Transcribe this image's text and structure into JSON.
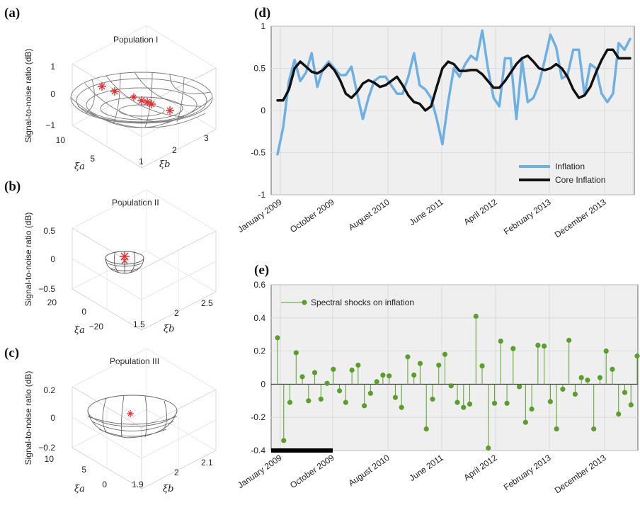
{
  "panels": {
    "a": {
      "letter": "(a)",
      "title": "Population I"
    },
    "b": {
      "letter": "(b)",
      "title": "Population II"
    },
    "c": {
      "letter": "(c)",
      "title": "Population III"
    },
    "d": {
      "letter": "(d)"
    },
    "e": {
      "letter": "(e)"
    }
  },
  "chart_data": [
    {
      "id": "a",
      "type": "surface3d",
      "title": "Population I",
      "zlabel": "Signal-to-noise ratio (dB)",
      "xlabel": "ξa",
      "ylabel": "ξb",
      "zticks": [
        "1",
        "0",
        "−1"
      ],
      "xticks": [
        "10",
        "5"
      ],
      "yticks": [
        "1",
        "2",
        "3"
      ]
    },
    {
      "id": "b",
      "type": "surface3d",
      "title": "Population II",
      "zlabel": "Signal-to-noise ratio (dB)",
      "xlabel": "ξa",
      "ylabel": "ξb",
      "zticks": [
        "0.5",
        "0",
        "−0.5"
      ],
      "xticks": [
        "20",
        "0",
        "−20"
      ],
      "yticks": [
        "1.5",
        "2",
        "2.5"
      ]
    },
    {
      "id": "c",
      "type": "surface3d",
      "title": "Population III",
      "zlabel": "Signal-to-noise ratio (dB)",
      "xlabel": "ξa",
      "ylabel": "ξb",
      "zticks": [
        "0.2",
        "0",
        "−0.2"
      ],
      "xticks": [
        "10",
        "5",
        "0"
      ],
      "yticks": [
        "1.9",
        "2",
        "2.1"
      ]
    },
    {
      "id": "d",
      "type": "line",
      "xticks": [
        "January 2009",
        "October 2009",
        "August 2010",
        "June 2011",
        "April 2012",
        "February 2013",
        "December 2013"
      ],
      "ylim": [
        -1,
        1
      ],
      "yticks": [
        "1",
        "0.5",
        "0",
        "-0.5",
        "-1"
      ],
      "grid": true,
      "legend_position": "bottom-right",
      "series": [
        {
          "name": "Inflation",
          "color": "#6fb0e2",
          "values": [
            -0.52,
            -0.2,
            0.35,
            0.6,
            0.35,
            0.45,
            0.68,
            0.28,
            0.5,
            0.58,
            0.5,
            0.42,
            0.42,
            0.52,
            0.2,
            -0.1,
            0.15,
            0.35,
            0.4,
            0.4,
            0.3,
            0.2,
            0.2,
            0.4,
            0.68,
            0.3,
            0.25,
            0.15,
            -0.1,
            -0.4,
            0.1,
            0.5,
            0.4,
            0.55,
            0.65,
            0.6,
            0.95,
            0.5,
            0.15,
            0.05,
            0.62,
            0.62,
            -0.1,
            0.6,
            0.1,
            0.15,
            0.32,
            0.6,
            0.9,
            0.75,
            0.38,
            0.42,
            0.72,
            0.72,
            0.18,
            0.55,
            0.5,
            0.2,
            0.1,
            0.2,
            0.8,
            0.72,
            0.85
          ]
        },
        {
          "name": "Core Inflation",
          "color": "#111111",
          "values": [
            0.12,
            0.12,
            0.25,
            0.5,
            0.58,
            0.52,
            0.46,
            0.44,
            0.48,
            0.55,
            0.48,
            0.36,
            0.2,
            0.15,
            0.22,
            0.32,
            0.36,
            0.33,
            0.28,
            0.3,
            0.35,
            0.4,
            0.3,
            0.18,
            0.1,
            0.08,
            0.0,
            0.05,
            0.28,
            0.5,
            0.58,
            0.55,
            0.47,
            0.47,
            0.48,
            0.48,
            0.43,
            0.35,
            0.27,
            0.27,
            0.35,
            0.45,
            0.55,
            0.62,
            0.65,
            0.58,
            0.5,
            0.48,
            0.5,
            0.55,
            0.5,
            0.4,
            0.25,
            0.15,
            0.18,
            0.28,
            0.45,
            0.6,
            0.72,
            0.72,
            0.62,
            0.62,
            0.62
          ]
        }
      ]
    },
    {
      "id": "e",
      "type": "stem",
      "xticks": [
        "January 2009",
        "October 2009",
        "August 2010",
        "June 2011",
        "April 2012",
        "February 2013",
        "December 2013"
      ],
      "ylim": [
        -0.4,
        0.6
      ],
      "yticks": [
        "0.6",
        "0.4",
        "0.2",
        "0",
        "-0.2",
        "-0.4"
      ],
      "grid": true,
      "legend_position": "top-left",
      "series": [
        {
          "name": "Spectral shocks on inflation",
          "color": "#5a9e2b",
          "values": [
            0.28,
            -0.34,
            -0.11,
            0.19,
            0.045,
            -0.1,
            0.07,
            -0.09,
            0.005,
            0.09,
            -0.04,
            -0.11,
            0.085,
            0.115,
            -0.13,
            -0.055,
            0.015,
            0.055,
            0.05,
            -0.08,
            -0.14,
            0.165,
            0.055,
            0.125,
            -0.27,
            -0.09,
            0.115,
            0.18,
            -0.01,
            -0.11,
            -0.14,
            -0.12,
            0.41,
            0.11,
            -0.385,
            -0.115,
            0.26,
            -0.115,
            0.215,
            -0.015,
            -0.23,
            -0.15,
            0.235,
            0.23,
            -0.105,
            -0.27,
            -0.03,
            0.265,
            -0.06,
            0.04,
            0.025,
            -0.27,
            0.04,
            0.2,
            0.09,
            -0.18,
            -0.05,
            -0.125,
            0.17
          ]
        }
      ]
    }
  ]
}
